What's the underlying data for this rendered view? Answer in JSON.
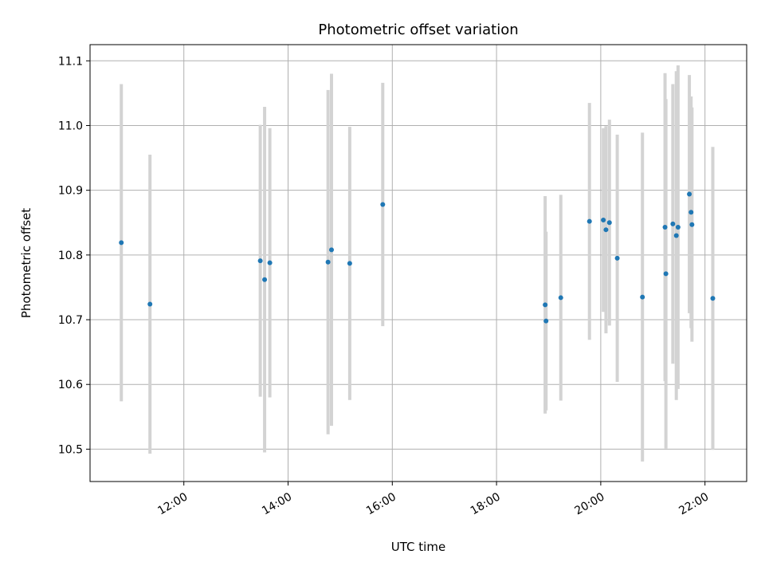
{
  "chart_data": {
    "type": "scatter",
    "title": "Photometric offset variation",
    "xlabel": "UTC time",
    "ylabel": "Photometric offset",
    "x_ticks": [
      "12:00",
      "14:00",
      "16:00",
      "18:00",
      "20:00",
      "22:00"
    ],
    "y_ticks": [
      "10.5",
      "10.6",
      "10.7",
      "10.8",
      "10.9",
      "11.0",
      "11.1"
    ],
    "xlim": [
      "10:12",
      "22:48"
    ],
    "ylim": [
      10.45,
      11.125
    ],
    "grid": true,
    "marker_color": "#1f77b4",
    "errorbar_color": "#d3d3d3",
    "points": [
      {
        "x": "10:48",
        "y": 10.819,
        "yerr": 0.245
      },
      {
        "x": "11:21",
        "y": 10.724,
        "yerr": 0.231
      },
      {
        "x": "13:28",
        "y": 10.791,
        "yerr": 0.21
      },
      {
        "x": "13:33",
        "y": 10.762,
        "yerr": 0.267
      },
      {
        "x": "13:39",
        "y": 10.788,
        "yerr": 0.208
      },
      {
        "x": "14:46",
        "y": 10.789,
        "yerr": 0.266
      },
      {
        "x": "14:50",
        "y": 10.808,
        "yerr": 0.272
      },
      {
        "x": "15:11",
        "y": 10.787,
        "yerr": 0.211
      },
      {
        "x": "15:49",
        "y": 10.878,
        "yerr": 0.188
      },
      {
        "x": "18:56",
        "y": 10.723,
        "yerr": 0.168
      },
      {
        "x": "18:57",
        "y": 10.698,
        "yerr": 0.138
      },
      {
        "x": "19:14",
        "y": 10.734,
        "yerr": 0.159
      },
      {
        "x": "19:47",
        "y": 10.852,
        "yerr": 0.183
      },
      {
        "x": "20:03",
        "y": 10.854,
        "yerr": 0.142
      },
      {
        "x": "20:06",
        "y": 10.839,
        "yerr": 0.16
      },
      {
        "x": "20:10",
        "y": 10.85,
        "yerr": 0.159
      },
      {
        "x": "20:19",
        "y": 10.795,
        "yerr": 0.191
      },
      {
        "x": "20:48",
        "y": 10.735,
        "yerr": 0.254
      },
      {
        "x": "21:14",
        "y": 10.843,
        "yerr": 0.238
      },
      {
        "x": "21:15",
        "y": 10.771,
        "yerr": 0.27
      },
      {
        "x": "21:23",
        "y": 10.848,
        "yerr": 0.216
      },
      {
        "x": "21:27",
        "y": 10.83,
        "yerr": 0.254
      },
      {
        "x": "21:29",
        "y": 10.843,
        "yerr": 0.25
      },
      {
        "x": "21:42",
        "y": 10.894,
        "yerr": 0.184
      },
      {
        "x": "21:44",
        "y": 10.866,
        "yerr": 0.179
      },
      {
        "x": "21:45",
        "y": 10.847,
        "yerr": 0.181
      },
      {
        "x": "22:09",
        "y": 10.733,
        "yerr": 0.234
      }
    ]
  }
}
